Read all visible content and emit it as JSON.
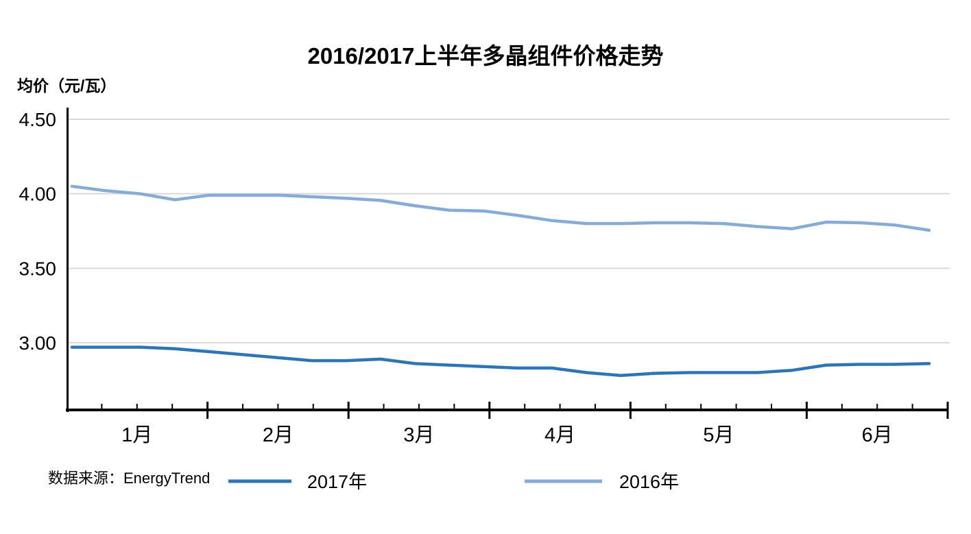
{
  "chart": {
    "title": "2016/2017上半年多晶组件价格走势",
    "ylabel": "均价（元/瓦）",
    "source": "数据来源：EnergyTrend"
  },
  "chart_data": {
    "type": "line",
    "title": "2016/2017上半年多晶组件价格走势",
    "ylabel": "均价（元/瓦）",
    "xlabel": "",
    "x_unit": "weekly points, first half year",
    "categories": [
      "1月",
      "2月",
      "3月",
      "4月",
      "5月",
      "6月"
    ],
    "weeks_per_month": [
      4,
      4,
      4,
      4,
      5,
      4
    ],
    "ylim": [
      2.55,
      4.58
    ],
    "yticks": [
      4.5,
      4.0,
      3.5,
      3.0
    ],
    "ytick_labels": [
      "4.50",
      "4.00",
      "3.50",
      "3.00"
    ],
    "grid": "horizontal",
    "legend_position": "bottom",
    "source": "数据来源：EnergyTrend",
    "series": [
      {
        "name": "2017年",
        "color": "#2E75B6",
        "values": [
          2.97,
          2.97,
          2.97,
          2.96,
          2.94,
          2.92,
          2.9,
          2.88,
          2.88,
          2.89,
          2.86,
          2.85,
          2.84,
          2.83,
          2.83,
          2.8,
          2.78,
          2.795,
          2.8,
          2.8,
          2.8,
          2.815,
          2.85,
          2.855,
          2.855,
          2.86
        ]
      },
      {
        "name": "2016年",
        "color": "#86ABD7",
        "values": [
          4.05,
          4.02,
          4.0,
          3.96,
          3.99,
          3.99,
          3.99,
          3.98,
          3.97,
          3.955,
          3.92,
          3.89,
          3.885,
          3.855,
          3.82,
          3.8,
          3.8,
          3.805,
          3.805,
          3.8,
          3.78,
          3.765,
          3.81,
          3.805,
          3.79,
          3.755
        ]
      }
    ],
    "colors": {
      "axis": "#000000",
      "gridline": "#D9D9D9",
      "text": "#000000"
    }
  }
}
